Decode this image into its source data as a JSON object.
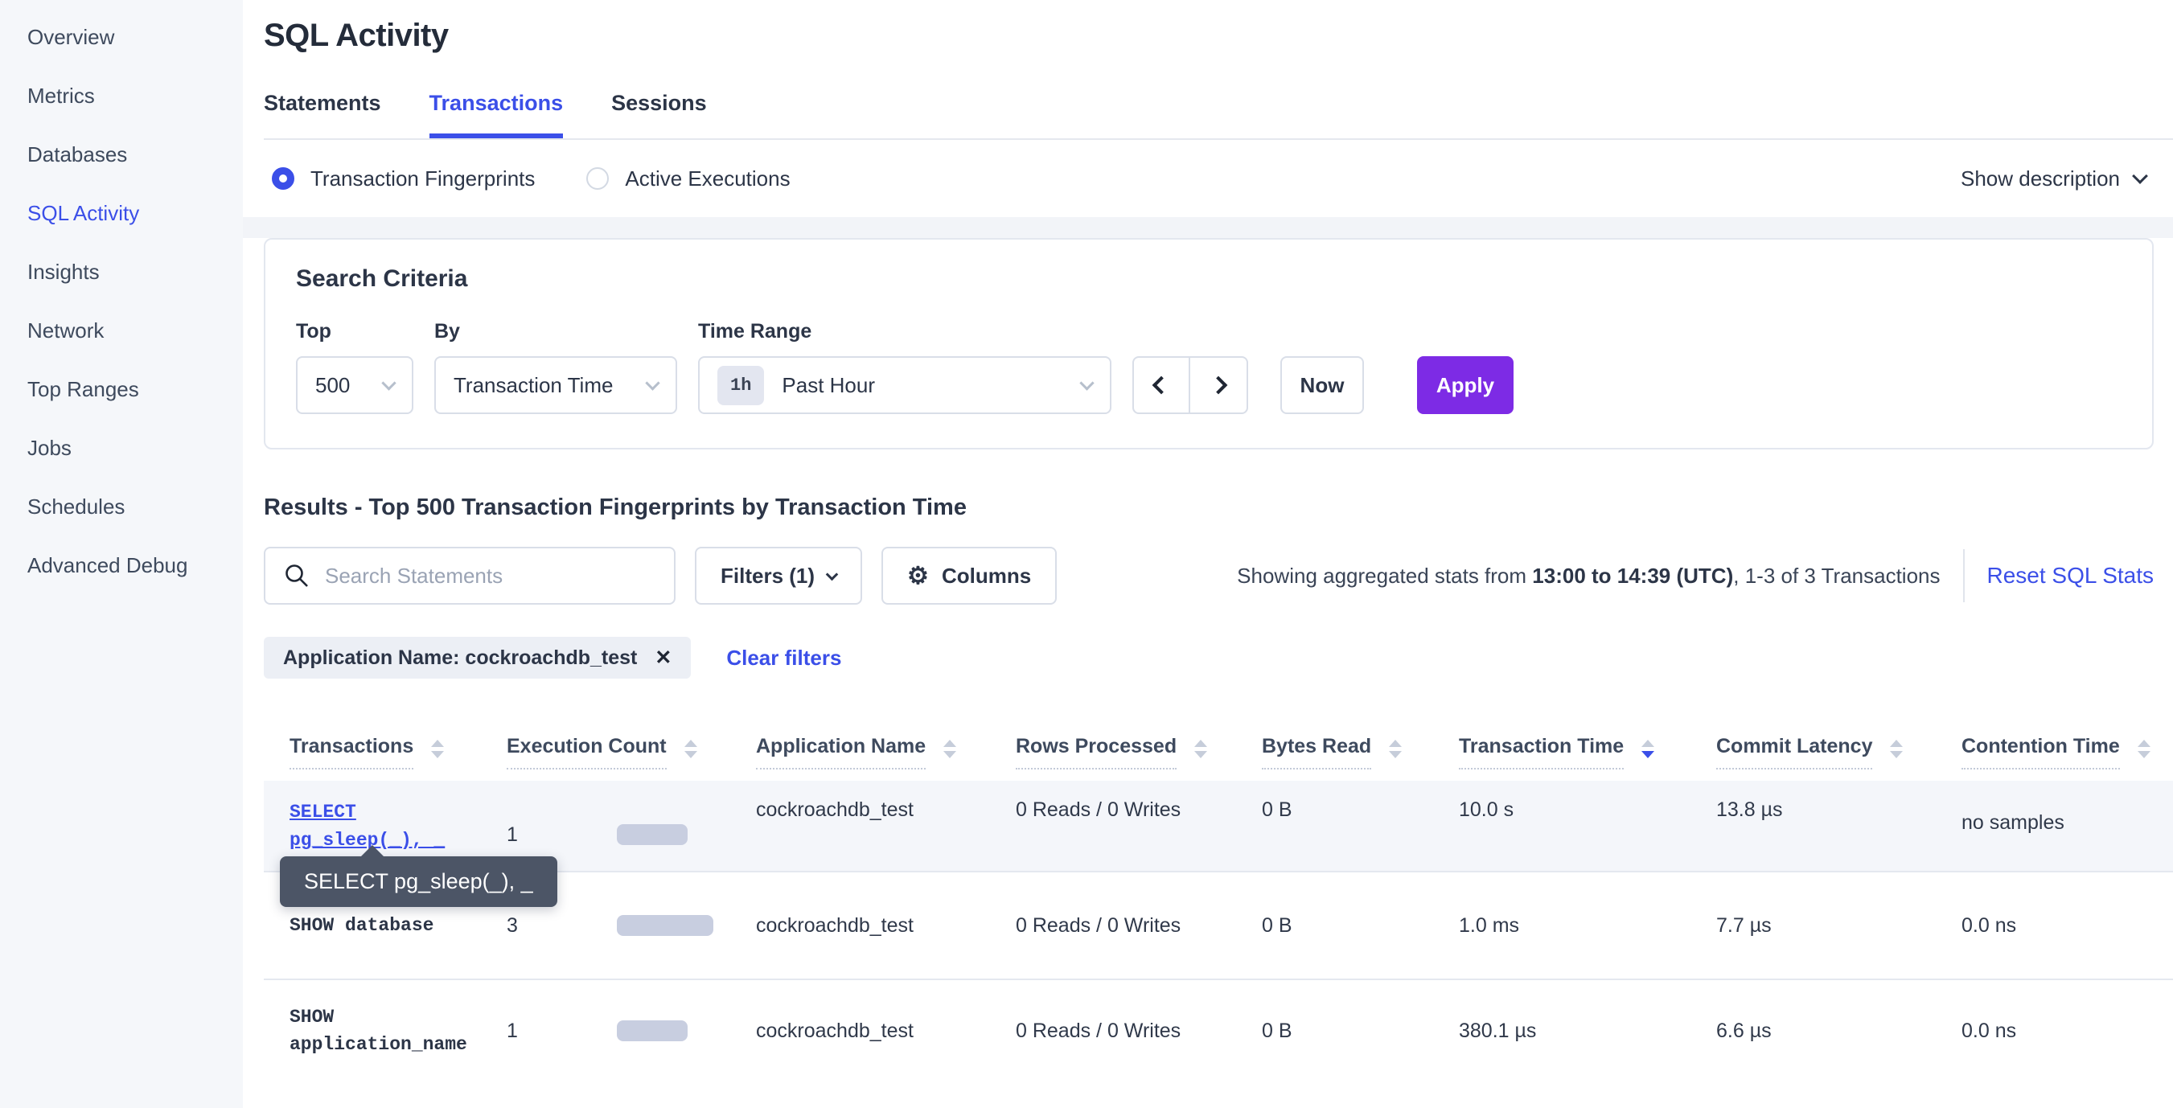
{
  "colors": {
    "accent_blue": "#3b4fe8",
    "apply_purple": "#7d2be5",
    "bar_fill": "#c8cee0",
    "tooltip_bg": "#4c5566",
    "sidebar_bg": "#f5f7fa",
    "hover_row_bg": "#f4f6fa"
  },
  "sidebar": {
    "items": [
      {
        "label": "Overview"
      },
      {
        "label": "Metrics"
      },
      {
        "label": "Databases"
      },
      {
        "label": "SQL Activity"
      },
      {
        "label": "Insights"
      },
      {
        "label": "Network"
      },
      {
        "label": "Top Ranges"
      },
      {
        "label": "Jobs"
      },
      {
        "label": "Schedules"
      },
      {
        "label": "Advanced Debug"
      }
    ],
    "active": "SQL Activity"
  },
  "header": {
    "title": "SQL Activity",
    "tabs": [
      {
        "label": "Statements"
      },
      {
        "label": "Transactions"
      },
      {
        "label": "Sessions"
      }
    ],
    "active_tab": "Transactions"
  },
  "view_toggle": {
    "options": [
      {
        "label": "Transaction Fingerprints",
        "selected": true
      },
      {
        "label": "Active Executions",
        "selected": false
      }
    ],
    "show_description_label": "Show description"
  },
  "search_criteria": {
    "title": "Search Criteria",
    "top": {
      "label": "Top",
      "value": "500"
    },
    "by": {
      "label": "By",
      "value": "Transaction Time"
    },
    "time_range": {
      "label": "Time Range",
      "badge": "1h",
      "value": "Past Hour"
    },
    "now_label": "Now",
    "apply_label": "Apply"
  },
  "results": {
    "title": "Results - Top 500 Transaction Fingerprints by Transaction Time",
    "search_placeholder": "Search Statements",
    "filters_label": "Filters (1)",
    "columns_label": "Columns",
    "stats_prefix": "Showing aggregated stats from ",
    "stats_bold": "13:00 to 14:39 (UTC)",
    "stats_suffix": ", 1-3 of 3 Transactions",
    "reset_label": "Reset SQL Stats",
    "filter_chip": "Application Name: cockroachdb_test",
    "chip_close": "✕",
    "clear_filters_label": "Clear filters"
  },
  "tooltip": {
    "text": "SELECT pg_sleep(_), _"
  },
  "table": {
    "headers": [
      {
        "label": "Transactions",
        "sort": "none"
      },
      {
        "label": "Execution Count",
        "sort": "none"
      },
      {
        "label": "Application Name",
        "sort": "none"
      },
      {
        "label": "Rows Processed",
        "sort": "none"
      },
      {
        "label": "Bytes Read",
        "sort": "none"
      },
      {
        "label": "Transaction Time",
        "sort": "desc"
      },
      {
        "label": "Commit Latency",
        "sort": "none"
      },
      {
        "label": "Contention Time",
        "sort": "none"
      }
    ],
    "rows": [
      {
        "transaction": "SELECT pg_sleep(_), _",
        "execution_count": "1",
        "application_name": "cockroachdb_test",
        "rows_processed": "0 Reads / 0 Writes",
        "bytes_read": "0 B",
        "transaction_time": "10.0 s",
        "commit_latency": "13.8 µs",
        "contention_time": "no samples",
        "bars": {
          "exec": 88,
          "txn_time": 130,
          "commit": 134
        }
      },
      {
        "transaction": "SHOW database",
        "execution_count": "3",
        "application_name": "cockroachdb_test",
        "rows_processed": "0 Reads / 0 Writes",
        "bytes_read": "0 B",
        "transaction_time": "1.0 ms",
        "commit_latency": "7.7 µs",
        "contention_time": "0.0 ns",
        "bars": {
          "exec": 120,
          "txn_time": 0,
          "commit": 76
        }
      },
      {
        "transaction": "SHOW application_name",
        "execution_count": "1",
        "application_name": "cockroachdb_test",
        "rows_processed": "0 Reads / 0 Writes",
        "bytes_read": "0 B",
        "transaction_time": "380.1 µs",
        "commit_latency": "6.6 µs",
        "contention_time": "0.0 ns",
        "bars": {
          "exec": 88,
          "txn_time": 0,
          "commit": 64
        }
      }
    ]
  }
}
